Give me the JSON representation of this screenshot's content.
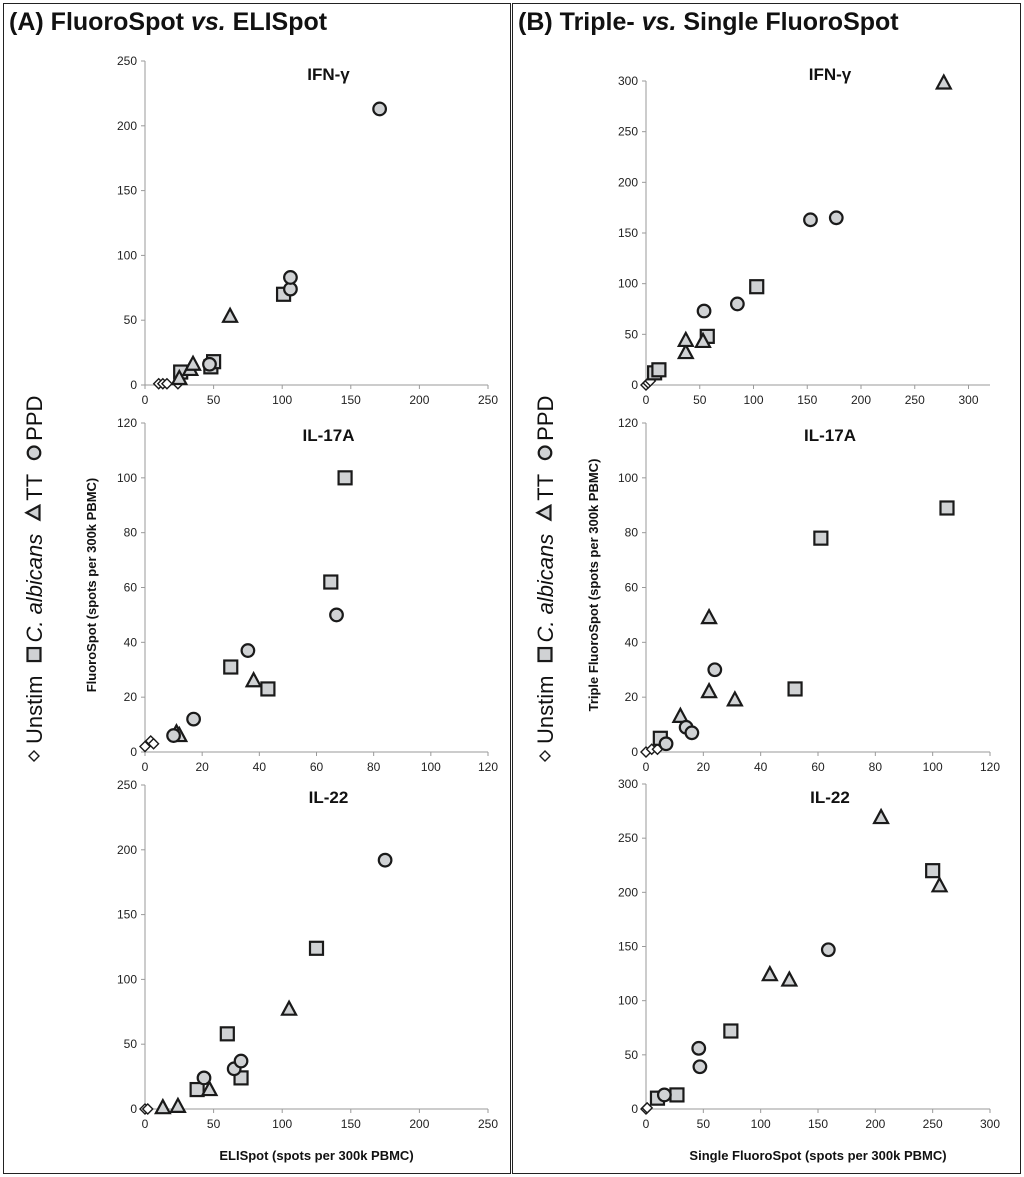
{
  "panels": [
    {
      "letter": "(A)",
      "title_pre": "FluoroSpot",
      "title_italic": "vs.",
      "title_post": "ELISpot"
    },
    {
      "letter": "(B)",
      "title_pre": "Triple-",
      "title_italic": "vs.",
      "title_post": "Single FluoroSpot"
    }
  ],
  "legend": {
    "unstim": "Unstim",
    "calbicans": "C. albicans",
    "tt": "TT",
    "ppd": "PPD"
  },
  "colors": {
    "marker_fill": "#d0d2d4",
    "marker_stroke": "#1a1a1a",
    "axis": "#9a9a9a"
  },
  "chart_data": [
    {
      "type": "scatter",
      "panel": "A",
      "title": "IFN-γ",
      "xlabel": "",
      "ylabel": "FluoroSpot (spots per 300k PBMC)",
      "xlim": [
        0,
        250
      ],
      "ylim": [
        0,
        250
      ],
      "xticks": [
        0,
        50,
        100,
        150,
        200,
        250
      ],
      "yticks": [
        0,
        50,
        100,
        150,
        200,
        250
      ],
      "series": [
        {
          "name": "Unstim",
          "marker": "diamond",
          "points": [
            [
              10,
              1
            ],
            [
              13,
              1
            ],
            [
              16,
              1
            ],
            [
              24,
              1
            ]
          ]
        },
        {
          "name": "C. albicans",
          "marker": "square",
          "points": [
            [
              26,
              10
            ],
            [
              48,
              14
            ],
            [
              50,
              18
            ],
            [
              101,
              70
            ]
          ]
        },
        {
          "name": "TT",
          "marker": "triangle",
          "points": [
            [
              25,
              5
            ],
            [
              33,
              12
            ],
            [
              35,
              16
            ],
            [
              62,
              53
            ]
          ]
        },
        {
          "name": "PPD",
          "marker": "circle",
          "points": [
            [
              47,
              16
            ],
            [
              106,
              74
            ],
            [
              106,
              83
            ],
            [
              171,
              213
            ]
          ]
        }
      ]
    },
    {
      "type": "scatter",
      "panel": "A",
      "title": "IL-17A",
      "xlabel": "",
      "ylabel": "FluoroSpot (spots per 300k PBMC)",
      "xlim": [
        0,
        120
      ],
      "ylim": [
        0,
        120
      ],
      "xticks": [
        0,
        20,
        40,
        60,
        80,
        100,
        120
      ],
      "yticks": [
        0,
        20,
        40,
        60,
        80,
        100,
        120
      ],
      "series": [
        {
          "name": "Unstim",
          "marker": "diamond",
          "points": [
            [
              0,
              2
            ],
            [
              2,
              4
            ],
            [
              3,
              3
            ]
          ]
        },
        {
          "name": "C. albicans",
          "marker": "square",
          "points": [
            [
              30,
              31
            ],
            [
              43,
              23
            ],
            [
              65,
              62
            ],
            [
              70,
              100
            ]
          ]
        },
        {
          "name": "TT",
          "marker": "triangle",
          "points": [
            [
              11,
              7
            ],
            [
              12,
              6
            ],
            [
              38,
              26
            ]
          ]
        },
        {
          "name": "PPD",
          "marker": "circle",
          "points": [
            [
              10,
              6
            ],
            [
              17,
              12
            ],
            [
              36,
              37
            ],
            [
              67,
              50
            ]
          ]
        }
      ]
    },
    {
      "type": "scatter",
      "panel": "A",
      "title": "IL-22",
      "xlabel": "ELISpot (spots per 300k PBMC)",
      "ylabel": "FluoroSpot (spots per 300k PBMC)",
      "xlim": [
        0,
        250
      ],
      "ylim": [
        0,
        250
      ],
      "xticks": [
        0,
        50,
        100,
        150,
        200,
        250
      ],
      "yticks": [
        0,
        50,
        100,
        150,
        200,
        250
      ],
      "series": [
        {
          "name": "Unstim",
          "marker": "diamond",
          "points": [
            [
              0,
              0
            ],
            [
              2,
              0
            ]
          ]
        },
        {
          "name": "C. albicans",
          "marker": "square",
          "points": [
            [
              38,
              15
            ],
            [
              60,
              58
            ],
            [
              70,
              24
            ],
            [
              125,
              124
            ]
          ]
        },
        {
          "name": "TT",
          "marker": "triangle",
          "points": [
            [
              13,
              1
            ],
            [
              24,
              2
            ],
            [
              47,
              15
            ],
            [
              105,
              77
            ]
          ]
        },
        {
          "name": "PPD",
          "marker": "circle",
          "points": [
            [
              43,
              24
            ],
            [
              65,
              31
            ],
            [
              70,
              37
            ],
            [
              175,
              192
            ]
          ]
        }
      ]
    },
    {
      "type": "scatter",
      "panel": "B",
      "title": "IFN-γ",
      "xlabel": "",
      "ylabel": "Triple FluoroSpot (spots per 300k PBMC)",
      "xlim": [
        0,
        320
      ],
      "ylim": [
        0,
        300
      ],
      "xticks": [
        0,
        50,
        100,
        150,
        200,
        250,
        300
      ],
      "yticks": [
        0,
        50,
        100,
        150,
        200,
        250,
        300
      ],
      "series": [
        {
          "name": "Unstim",
          "marker": "diamond",
          "points": [
            [
              0,
              0
            ],
            [
              2,
              2
            ],
            [
              4,
              4
            ]
          ]
        },
        {
          "name": "C. albicans",
          "marker": "square",
          "points": [
            [
              8,
              12
            ],
            [
              12,
              15
            ],
            [
              57,
              48
            ],
            [
              103,
              97
            ]
          ]
        },
        {
          "name": "TT",
          "marker": "triangle",
          "points": [
            [
              37,
              32
            ],
            [
              37,
              44
            ],
            [
              53,
              43
            ],
            [
              277,
              298
            ]
          ]
        },
        {
          "name": "PPD",
          "marker": "circle",
          "points": [
            [
              54,
              73
            ],
            [
              85,
              80
            ],
            [
              153,
              163
            ],
            [
              177,
              165
            ]
          ]
        }
      ]
    },
    {
      "type": "scatter",
      "panel": "B",
      "title": "IL-17A",
      "xlabel": "",
      "ylabel": "Triple FluoroSpot (spots per 300k PBMC)",
      "xlim": [
        0,
        120
      ],
      "ylim": [
        0,
        120
      ],
      "xticks": [
        0,
        20,
        40,
        60,
        80,
        100,
        120
      ],
      "yticks": [
        0,
        20,
        40,
        60,
        80,
        100,
        120
      ],
      "series": [
        {
          "name": "Unstim",
          "marker": "diamond",
          "points": [
            [
              0,
              0
            ],
            [
              2,
              1
            ],
            [
              4,
              1
            ]
          ]
        },
        {
          "name": "C. albicans",
          "marker": "square",
          "points": [
            [
              5,
              5
            ],
            [
              52,
              23
            ],
            [
              61,
              78
            ],
            [
              105,
              89
            ]
          ]
        },
        {
          "name": "TT",
          "marker": "triangle",
          "points": [
            [
              12,
              13
            ],
            [
              22,
              22
            ],
            [
              22,
              49
            ],
            [
              31,
              19
            ]
          ]
        },
        {
          "name": "PPD",
          "marker": "circle",
          "points": [
            [
              7,
              3
            ],
            [
              14,
              9
            ],
            [
              16,
              7
            ],
            [
              24,
              30
            ]
          ]
        }
      ]
    },
    {
      "type": "scatter",
      "panel": "B",
      "title": "IL-22",
      "xlabel": "Single FluoroSpot (spots per 300k PBMC)",
      "ylabel": "Triple FluoroSpot (spots per 300k PBMC)",
      "xlim": [
        0,
        300
      ],
      "ylim": [
        0,
        300
      ],
      "xticks": [
        0,
        50,
        100,
        150,
        200,
        250,
        300
      ],
      "yticks": [
        0,
        50,
        100,
        150,
        200,
        250,
        300
      ],
      "series": [
        {
          "name": "Unstim",
          "marker": "diamond",
          "points": [
            [
              0,
              0
            ],
            [
              1,
              1
            ]
          ]
        },
        {
          "name": "C. albicans",
          "marker": "square",
          "points": [
            [
              10,
              10
            ],
            [
              27,
              13
            ],
            [
              74,
              72
            ],
            [
              250,
              220
            ]
          ]
        },
        {
          "name": "TT",
          "marker": "triangle",
          "points": [
            [
              108,
              124
            ],
            [
              125,
              119
            ],
            [
              205,
              269
            ],
            [
              256,
              206
            ]
          ]
        },
        {
          "name": "PPD",
          "marker": "circle",
          "points": [
            [
              16,
              13
            ],
            [
              47,
              39
            ],
            [
              46,
              56
            ],
            [
              159,
              147
            ]
          ]
        }
      ]
    }
  ]
}
